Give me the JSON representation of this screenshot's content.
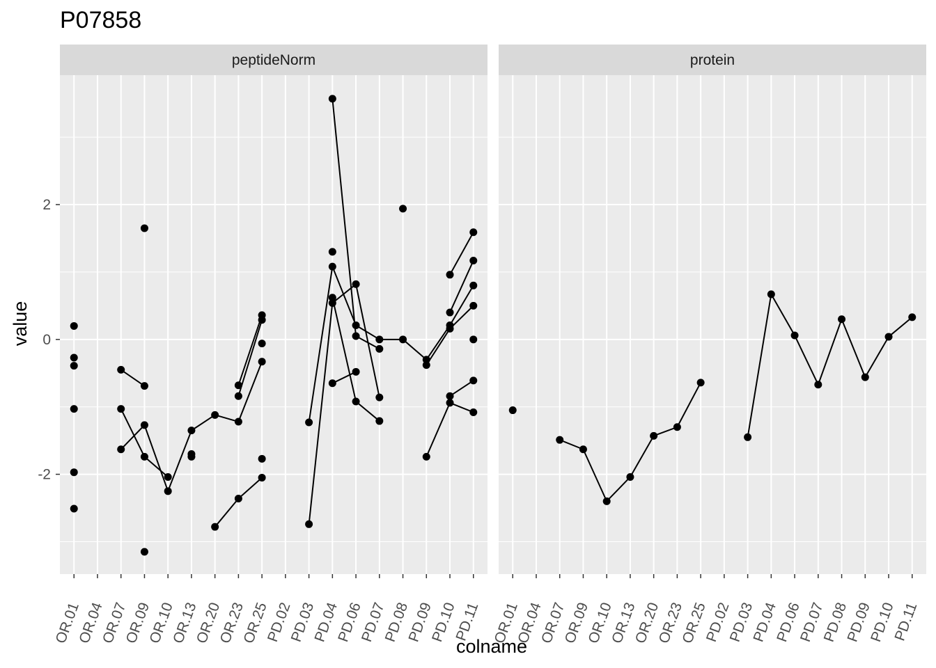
{
  "chart_data": {
    "type": "line",
    "title": "P07858",
    "xlabel": "colname",
    "ylabel": "value",
    "ylim": [
      -3.48,
      3.92
    ],
    "y_ticks": [
      -2,
      0,
      2
    ],
    "y_tick_labels": [
      "-2",
      "0",
      "2"
    ],
    "grid": true,
    "categories": [
      "OR.01",
      "OR.04",
      "OR.07",
      "OR.09",
      "OR.10",
      "OR.13",
      "OR.20",
      "OR.23",
      "OR.25",
      "PD.02",
      "PD.03",
      "PD.04",
      "PD.06",
      "PD.07",
      "PD.08",
      "PD.09",
      "PD.10",
      "PD.11"
    ],
    "facets": [
      {
        "name": "peptideNorm",
        "series": [
          {
            "values": [
              0.2,
              null,
              -0.45,
              -0.69,
              null,
              null,
              null,
              null,
              null,
              null,
              null,
              null,
              null,
              null,
              null,
              null,
              null,
              null
            ]
          },
          {
            "values": [
              -0.27,
              null,
              -1.03,
              -1.74,
              -2.04,
              null,
              null,
              null,
              null,
              null,
              null,
              null,
              null,
              null,
              null,
              null,
              null,
              null
            ]
          },
          {
            "values": [
              -0.39,
              null,
              -1.63,
              -1.27,
              -2.25,
              -1.35,
              -1.12,
              -1.22,
              -0.33,
              null,
              -1.23,
              1.08,
              0.21,
              0.0,
              0.0,
              -0.3,
              0.21,
              0.8
            ]
          },
          {
            "values": [
              -1.03,
              null,
              null,
              null,
              null,
              -1.74,
              null,
              null,
              null,
              null,
              null,
              null,
              null,
              null,
              null,
              null,
              null,
              null
            ]
          },
          {
            "values": [
              -1.97,
              null,
              null,
              1.65,
              null,
              -1.7,
              null,
              -0.84,
              0.29,
              null,
              -2.74,
              0.54,
              0.82,
              -0.86,
              null,
              -0.38,
              0.16,
              0.5
            ]
          },
          {
            "values": [
              -2.51,
              null,
              null,
              -3.15,
              null,
              null,
              -2.78,
              -2.36,
              -2.05,
              null,
              null,
              0.62,
              -0.92,
              -1.21,
              null,
              -1.74,
              -0.94,
              -1.08
            ]
          },
          {
            "values": [
              null,
              null,
              null,
              null,
              null,
              null,
              null,
              -0.68,
              0.36,
              null,
              null,
              1.3,
              null,
              null,
              null,
              null,
              null,
              null
            ]
          },
          {
            "values": [
              null,
              null,
              null,
              null,
              null,
              null,
              null,
              null,
              -0.06,
              null,
              null,
              3.57,
              0.05,
              -0.14,
              null,
              null,
              null,
              null
            ]
          },
          {
            "values": [
              null,
              null,
              null,
              null,
              null,
              null,
              null,
              null,
              -1.77,
              null,
              null,
              -0.65,
              -0.48,
              null,
              1.94,
              null,
              0.4,
              1.17
            ]
          },
          {
            "values": [
              null,
              null,
              null,
              null,
              null,
              null,
              null,
              null,
              null,
              null,
              null,
              null,
              null,
              null,
              null,
              null,
              0.96,
              1.59
            ]
          },
          {
            "values": [
              null,
              null,
              null,
              null,
              null,
              null,
              null,
              null,
              null,
              null,
              null,
              null,
              null,
              null,
              null,
              null,
              -0.84,
              -0.61
            ]
          },
          {
            "values": [
              null,
              null,
              null,
              null,
              null,
              null,
              null,
              null,
              null,
              null,
              null,
              null,
              null,
              null,
              null,
              null,
              null,
              0.0
            ]
          }
        ]
      },
      {
        "name": "protein",
        "series": [
          {
            "values": [
              -1.05,
              null,
              -1.49,
              -1.63,
              -2.4,
              -2.04,
              -1.43,
              -1.3,
              -0.64,
              null,
              -1.45,
              0.67,
              0.06,
              -0.67,
              0.3,
              -0.56,
              0.04,
              0.33
            ]
          }
        ]
      }
    ]
  }
}
